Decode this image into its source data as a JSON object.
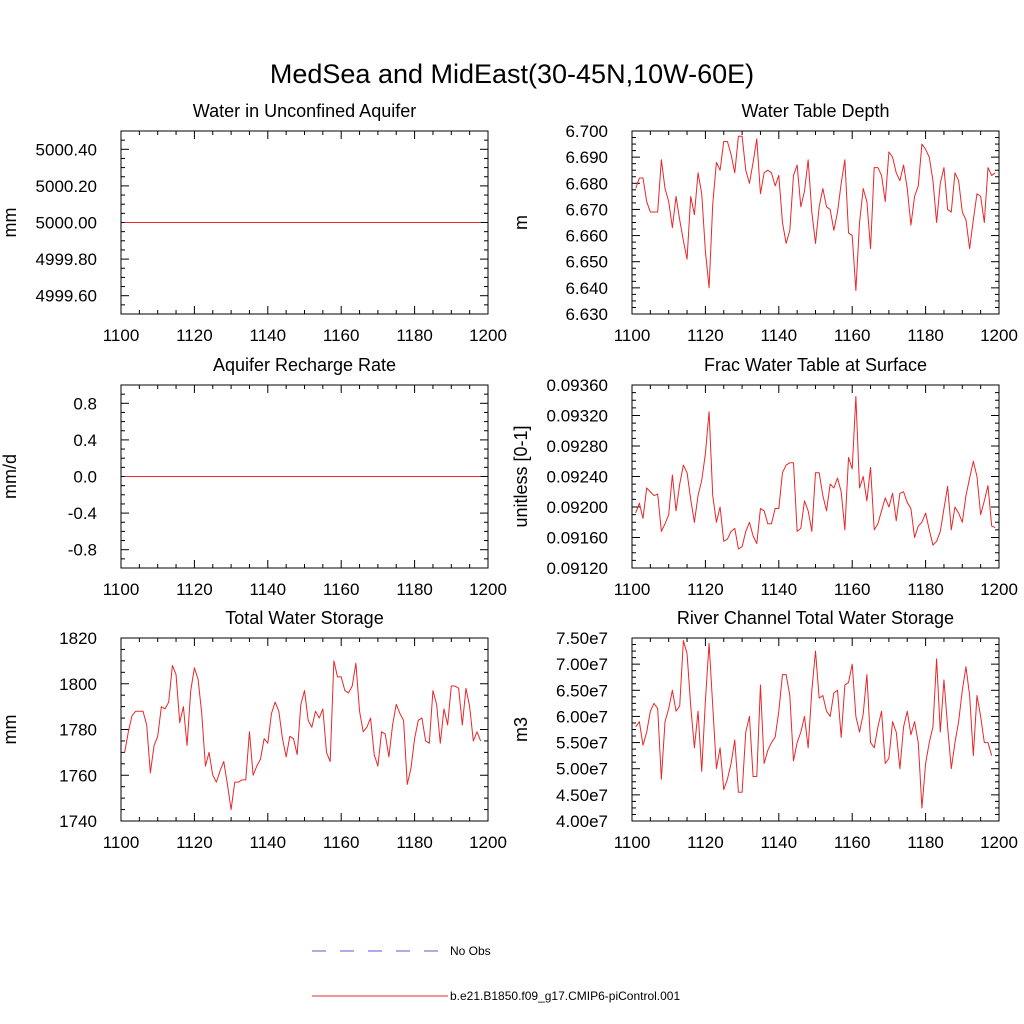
{
  "figure": {
    "title": "MedSea and MidEast(30-45N,10W-60E)"
  },
  "legend": {
    "entries": [
      {
        "label": "No Obs",
        "color": "#5a5ad8",
        "style": "dashed"
      },
      {
        "label": "b.e21.B1850.f09_g17.CMIP6-piControl.001",
        "color": "#e8282a",
        "style": "solid"
      }
    ]
  },
  "chart_data": [
    {
      "type": "line",
      "title": "Water in Unconfined Aquifer",
      "ylabel": "mm",
      "xlim": [
        1100,
        1200
      ],
      "ylim": [
        4999.5,
        5000.5
      ],
      "xticks": [
        1100,
        1120,
        1140,
        1160,
        1180,
        1200
      ],
      "yticks": [
        4999.6,
        4999.8,
        5000.0,
        5000.2,
        5000.4
      ],
      "ytick_labels": [
        "4999.60",
        "4999.80",
        "5000.00",
        "5000.20",
        "5000.40"
      ],
      "series": [
        {
          "x": [
            1101,
            1198
          ],
          "values": [
            5000.0,
            5000.0
          ]
        }
      ]
    },
    {
      "type": "line",
      "title": "Water Table Depth",
      "ylabel": "m",
      "xlim": [
        1100,
        1200
      ],
      "ylim": [
        6.63,
        6.7
      ],
      "xticks": [
        1100,
        1120,
        1140,
        1160,
        1180,
        1200
      ],
      "yticks": [
        6.63,
        6.64,
        6.65,
        6.66,
        6.67,
        6.68,
        6.69,
        6.7
      ],
      "ytick_labels": [
        "6.630",
        "6.640",
        "6.650",
        "6.660",
        "6.670",
        "6.680",
        "6.690",
        "6.700"
      ],
      "series": [
        {
          "x0": 1101,
          "values": [
            6.678,
            6.682,
            6.682,
            6.673,
            6.669,
            6.669,
            6.669,
            6.689,
            6.678,
            6.673,
            6.663,
            6.675,
            6.666,
            6.658,
            6.651,
            6.675,
            6.668,
            6.684,
            6.676,
            6.654,
            6.64,
            6.672,
            6.688,
            6.685,
            6.696,
            6.696,
            6.691,
            6.684,
            6.698,
            6.698,
            6.685,
            6.68,
            6.688,
            6.697,
            6.676,
            6.684,
            6.685,
            6.684,
            6.679,
            6.683,
            6.665,
            6.657,
            6.662,
            6.683,
            6.687,
            6.671,
            6.677,
            6.689,
            6.669,
            6.657,
            6.671,
            6.678,
            6.671,
            6.67,
            6.662,
            6.669,
            6.68,
            6.689,
            6.661,
            6.66,
            6.639,
            6.665,
            6.678,
            6.673,
            6.655,
            6.686,
            6.686,
            6.683,
            6.673,
            6.692,
            6.69,
            6.684,
            6.681,
            6.687,
            6.678,
            6.664,
            6.675,
            6.679,
            6.695,
            6.693,
            6.69,
            6.681,
            6.665,
            6.68,
            6.686,
            6.67,
            6.669,
            6.684,
            6.681,
            6.669,
            6.666,
            6.655,
            6.666,
            6.676,
            6.675,
            6.665,
            6.686,
            6.683,
            6.684
          ]
        }
      ]
    },
    {
      "type": "line",
      "title": "Aquifer Recharge Rate",
      "ylabel": "mm/d",
      "xlim": [
        1100,
        1200
      ],
      "ylim": [
        -1.0,
        1.0
      ],
      "xticks": [
        1100,
        1120,
        1140,
        1160,
        1180,
        1200
      ],
      "yticks": [
        -0.8,
        -0.4,
        0.0,
        0.4,
        0.8
      ],
      "ytick_labels": [
        "-0.8",
        "-0.4",
        "0.0",
        "0.4",
        "0.8"
      ],
      "series": [
        {
          "x": [
            1101,
            1198
          ],
          "values": [
            0.0,
            0.0
          ]
        }
      ]
    },
    {
      "type": "line",
      "title": "Frac Water Table at Surface",
      "ylabel": "unitless [0-1]",
      "xlim": [
        1100,
        1200
      ],
      "ylim": [
        0.0912,
        0.0936
      ],
      "xticks": [
        1100,
        1120,
        1140,
        1160,
        1180,
        1200
      ],
      "yticks": [
        0.0912,
        0.0916,
        0.092,
        0.0924,
        0.0928,
        0.0932,
        0.0936
      ],
      "ytick_labels": [
        "0.09120",
        "0.09160",
        "0.09200",
        "0.09240",
        "0.09280",
        "0.09320",
        "0.09360"
      ],
      "series": [
        {
          "x0": 1101,
          "values": [
            0.09192,
            0.09205,
            0.09185,
            0.09225,
            0.0922,
            0.09215,
            0.09217,
            0.09168,
            0.09178,
            0.0919,
            0.09242,
            0.09195,
            0.0923,
            0.09255,
            0.09245,
            0.0921,
            0.0918,
            0.09215,
            0.09235,
            0.0927,
            0.09325,
            0.09215,
            0.0918,
            0.092,
            0.09155,
            0.09158,
            0.09168,
            0.09172,
            0.09145,
            0.09148,
            0.09168,
            0.0918,
            0.09162,
            0.09152,
            0.09198,
            0.09195,
            0.09178,
            0.09178,
            0.09198,
            0.09198,
            0.09245,
            0.09255,
            0.09258,
            0.09258,
            0.09168,
            0.09172,
            0.09208,
            0.09195,
            0.09168,
            0.09245,
            0.09245,
            0.09215,
            0.09195,
            0.0923,
            0.09225,
            0.09238,
            0.0922,
            0.0917,
            0.09265,
            0.0925,
            0.09345,
            0.09225,
            0.0924,
            0.09208,
            0.09252,
            0.0917,
            0.09178,
            0.09195,
            0.09212,
            0.092,
            0.09218,
            0.09182,
            0.09218,
            0.0922,
            0.09206,
            0.09198,
            0.0916,
            0.09175,
            0.0918,
            0.09192,
            0.0917,
            0.0915,
            0.09155,
            0.09168,
            0.09198,
            0.09227,
            0.0917,
            0.092,
            0.09192,
            0.0918,
            0.09215,
            0.09238,
            0.0926,
            0.0924,
            0.0919,
            0.09208,
            0.09228,
            0.09175,
            0.09173
          ]
        }
      ]
    },
    {
      "type": "line",
      "title": "Total Water Storage",
      "ylabel": "mm",
      "xlim": [
        1100,
        1200
      ],
      "ylim": [
        1740,
        1820
      ],
      "xticks": [
        1100,
        1120,
        1140,
        1160,
        1180,
        1200
      ],
      "yticks": [
        1740,
        1760,
        1780,
        1800,
        1820
      ],
      "ytick_labels": [
        "1740",
        "1760",
        "1780",
        "1800",
        "1820"
      ],
      "series": [
        {
          "x0": 1101,
          "values": [
            1770,
            1779,
            1786,
            1788,
            1788,
            1788,
            1782,
            1761,
            1773,
            1777,
            1790,
            1789,
            1792,
            1808,
            1804,
            1783,
            1790,
            1773,
            1797,
            1807,
            1802,
            1787,
            1764,
            1770,
            1760,
            1757,
            1762,
            1766,
            1756,
            1745,
            1757,
            1757,
            1758,
            1758,
            1779,
            1760,
            1764,
            1767,
            1776,
            1774,
            1787,
            1792,
            1788,
            1776,
            1768,
            1777,
            1776,
            1769,
            1791,
            1797,
            1784,
            1781,
            1788,
            1785,
            1789,
            1770,
            1766,
            1810,
            1803,
            1803,
            1797,
            1796,
            1799,
            1809,
            1788,
            1779,
            1781,
            1785,
            1769,
            1764,
            1779,
            1778,
            1768,
            1782,
            1791,
            1787,
            1784,
            1756,
            1763,
            1776,
            1784,
            1785,
            1775,
            1774,
            1797,
            1791,
            1774,
            1789,
            1782,
            1799,
            1799,
            1798,
            1782,
            1798,
            1790,
            1775,
            1779,
            1775
          ]
        }
      ]
    },
    {
      "type": "line",
      "title": "River Channel Total Water Storage",
      "ylabel": "m3",
      "xlim": [
        1100,
        1200
      ],
      "ylim": [
        40000000,
        75000000
      ],
      "xticks": [
        1100,
        1120,
        1140,
        1160,
        1180,
        1200
      ],
      "yticks": [
        40000000,
        45000000,
        50000000,
        55000000,
        60000000,
        65000000,
        70000000,
        75000000
      ],
      "ytick_labels": [
        "4.00e7",
        "4.50e7",
        "5.00e7",
        "5.50e7",
        "6.00e7",
        "6.50e7",
        "7.00e7",
        "7.50e7"
      ],
      "series": [
        {
          "x0": 1101,
          "values": [
            58000000,
            59000000,
            54500000,
            57000000,
            61000000,
            62500000,
            61500000,
            48000000,
            59000000,
            61500000,
            65000000,
            61000000,
            62000000,
            74500000,
            72000000,
            62000000,
            54000000,
            61000000,
            49500000,
            63000000,
            74000000,
            62000000,
            50000000,
            54000000,
            46000000,
            48000000,
            51000000,
            55500000,
            45500000,
            45500000,
            57000000,
            60000000,
            48500000,
            48500000,
            66000000,
            51000000,
            53500000,
            55000000,
            56000000,
            61000000,
            68000000,
            68000000,
            64000000,
            51500000,
            55000000,
            57000000,
            60000000,
            54000000,
            65000000,
            72500000,
            63500000,
            64000000,
            61000000,
            60000000,
            64500000,
            65000000,
            56000000,
            66000000,
            66500000,
            70000000,
            60000000,
            57000000,
            60500000,
            68000000,
            55000000,
            54000000,
            58000000,
            61000000,
            51000000,
            52000000,
            59000000,
            57000000,
            50000000,
            58000000,
            61000000,
            56500000,
            59000000,
            55000000,
            42500000,
            51000000,
            55000000,
            58000000,
            71000000,
            57000000,
            67000000,
            58000000,
            50000000,
            55000000,
            59000000,
            65000000,
            69500000,
            64000000,
            52500000,
            64000000,
            60000000,
            55000000,
            55000000,
            52500000
          ]
        }
      ]
    }
  ]
}
